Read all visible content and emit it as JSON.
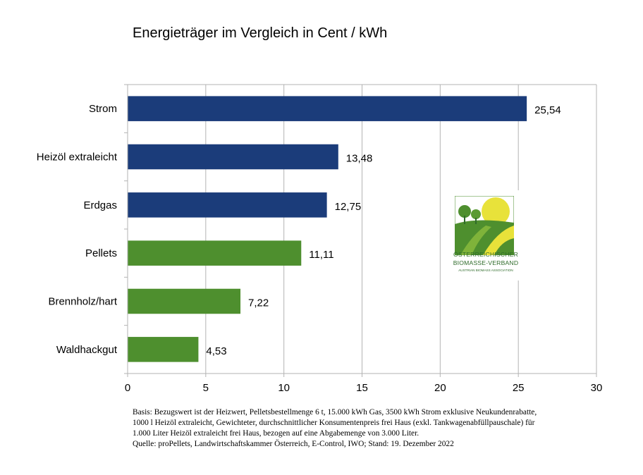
{
  "chart_data": {
    "type": "bar",
    "orientation": "horizontal",
    "title": "Energieträger im Vergleich in Cent / kWh",
    "categories": [
      "Strom",
      "Heizöl extraleicht",
      "Erdgas",
      "Pellets",
      "Brennholz/hart",
      "Waldhackgut"
    ],
    "values": [
      25.54,
      13.48,
      12.75,
      11.11,
      7.22,
      4.53
    ],
    "value_labels": [
      "25,54",
      "13,48",
      "12,75",
      "11,11",
      "7,22",
      "4,53"
    ],
    "bar_colors": [
      "#1b3c7a",
      "#1b3c7a",
      "#1b3c7a",
      "#4e8f2e",
      "#4e8f2e",
      "#4e8f2e"
    ],
    "xlim": [
      0,
      30
    ],
    "xticks": [
      0,
      5,
      10,
      15,
      20,
      25,
      30
    ],
    "grid": true,
    "legend": "none",
    "xlabel": "",
    "ylabel": ""
  },
  "footnote": {
    "lines": [
      "Basis: Bezugswert ist der Heizwert, Pelletsbestellmenge 6 t, 15.000 kWh Gas, 3500 kWh Strom exklusive Neukundenrabatte,",
      "1000 l Heizöl extraleicht, Gewichteter, durchschnittlicher Konsumentenpreis frei Haus (exkl. Tankwagenabfüllpauschale) für",
      "1.000 Liter Heizöl extraleicht frei Haus, bezogen auf eine Abgabemenge von 3.000 Liter.",
      "Quelle: proPellets, Landwirtschaftskammer Österreich, E-Control, IWO; Stand: 19. Dezember 2022"
    ]
  },
  "logo": {
    "line1": "ÖSTERREICHISCHER",
    "line2": "BIOMASSE-VERBAND",
    "line3": "AUSTRIAN BIOMASS ASSOCIATION",
    "colors": {
      "green": "#4e8f2e",
      "yellow": "#e8e23a",
      "dark_green": "#2f6b2a"
    }
  }
}
